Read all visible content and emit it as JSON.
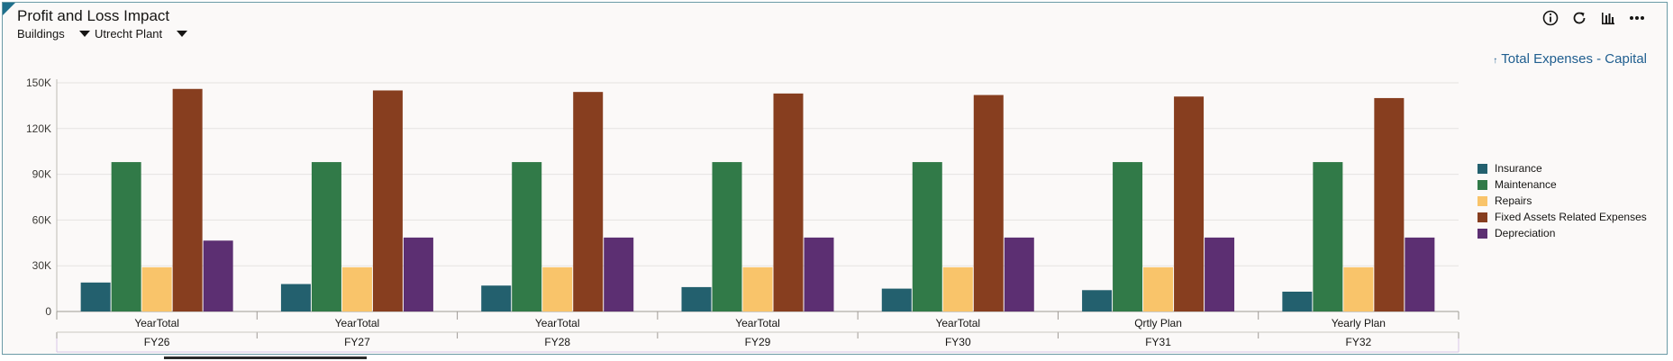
{
  "header": {
    "title": "Profit and Loss Impact",
    "filters": [
      {
        "label": "Buildings"
      },
      {
        "label": "Utrecht Plant"
      }
    ],
    "drill_link": "Total Expenses - Capital"
  },
  "toolbar": {
    "icons": [
      "info-icon",
      "refresh-icon",
      "chart-type-icon",
      "more-icon"
    ]
  },
  "colors": {
    "Insurance": "#23606e",
    "Maintenance": "#317a48",
    "Repairs": "#f9c46a",
    "Fixed Assets Related Expenses": "#873e1f",
    "Depreciation": "#5c2f72"
  },
  "chart_data": {
    "type": "bar",
    "ylim": [
      0,
      150000
    ],
    "y_ticks": [
      "0",
      "30K",
      "60K",
      "90K",
      "120K",
      "150K"
    ],
    "y_tick_values": [
      0,
      30000,
      60000,
      90000,
      120000,
      150000
    ],
    "categories": [
      {
        "inner": "YearTotal",
        "outer": "FY26"
      },
      {
        "inner": "YearTotal",
        "outer": "FY27"
      },
      {
        "inner": "YearTotal",
        "outer": "FY28"
      },
      {
        "inner": "YearTotal",
        "outer": "FY29"
      },
      {
        "inner": "YearTotal",
        "outer": "FY30"
      },
      {
        "inner": "Qrtly Plan",
        "outer": "FY31"
      },
      {
        "inner": "Yearly Plan",
        "outer": "FY32"
      }
    ],
    "series": [
      {
        "name": "Insurance",
        "values": [
          19000,
          18000,
          17000,
          16000,
          15000,
          14000,
          13000
        ]
      },
      {
        "name": "Maintenance",
        "values": [
          98000,
          98000,
          98000,
          98000,
          98000,
          98000,
          98000
        ]
      },
      {
        "name": "Repairs",
        "values": [
          29000,
          29000,
          29000,
          29000,
          29000,
          29000,
          29000
        ]
      },
      {
        "name": "Fixed Assets Related Expenses",
        "values": [
          146000,
          145000,
          144000,
          143000,
          142000,
          141000,
          140000
        ]
      },
      {
        "name": "Depreciation",
        "values": [
          46500,
          48500,
          48500,
          48500,
          48500,
          48500,
          48500
        ]
      }
    ],
    "legend_position": "right",
    "grid": true
  }
}
